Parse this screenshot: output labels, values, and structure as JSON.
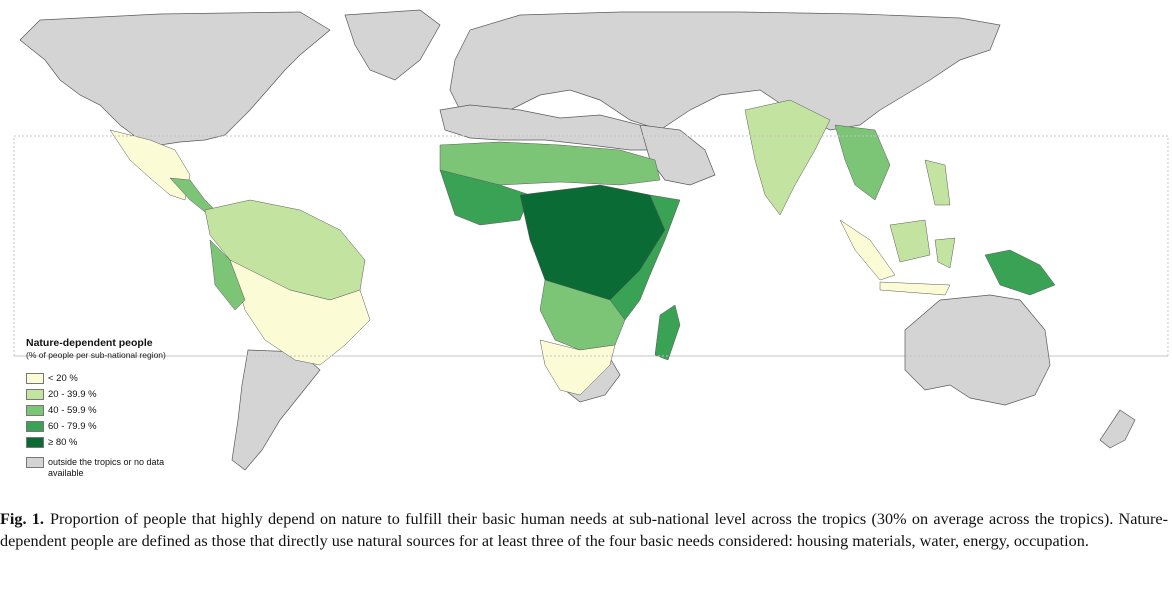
{
  "legend": {
    "title": "Nature-dependent people",
    "subtitle": "(% of people per sub-national region)",
    "classes": [
      {
        "label": "< 20 %",
        "color": "#fbfbd6"
      },
      {
        "label": "20 - 39.9 %",
        "color": "#c3e3a0"
      },
      {
        "label": "40 - 59.9 %",
        "color": "#7cc476"
      },
      {
        "label": "60 - 79.9 %",
        "color": "#3aa254"
      },
      {
        "label": "≥ 80 %",
        "color": "#0b6b34"
      }
    ],
    "no_data": {
      "label": "outside the tropics or no data available",
      "color": "#d4d4d4"
    }
  },
  "caption": {
    "label": "Fig. 1.",
    "text": "Proportion of people that highly depend on nature to fulfill their basic human needs at sub-national level across the tropics (30% on average across the tropics). Nature-dependent people are defined as those that directly use natural sources for at least three of the four basic needs considered: housing materials, water, energy, occupation."
  },
  "colors": {
    "border": "#5a5a5a",
    "tropics_line": "#bdbdbd",
    "ocean": "#ffffff"
  }
}
